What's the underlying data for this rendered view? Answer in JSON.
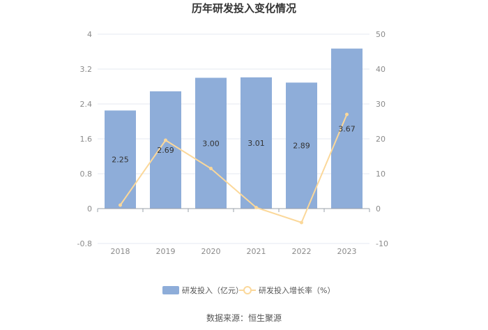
{
  "chart_data": {
    "type": "bar",
    "title": "历年研发投入变化情况",
    "categories": [
      "2018",
      "2019",
      "2020",
      "2021",
      "2022",
      "2023"
    ],
    "series": [
      {
        "name": "研发投入（亿元）",
        "type": "bar",
        "axis": "left",
        "color": "#8eadd9",
        "values": [
          2.25,
          2.69,
          3.0,
          3.01,
          2.89,
          3.67
        ],
        "labels": [
          "2.25",
          "2.69",
          "3.00",
          "3.01",
          "2.89",
          "3.67"
        ]
      },
      {
        "name": "研发投入增长率（%）",
        "type": "line",
        "axis": "right",
        "color": "#fbd89a",
        "values": [
          1.0,
          19.6,
          11.5,
          0.3,
          -4.0,
          27.0
        ]
      }
    ],
    "y_left": {
      "min": -0.8,
      "max": 4,
      "ticks": [
        "-0.8",
        "0",
        "0.8",
        "1.6",
        "2.4",
        "3.2",
        "4"
      ],
      "tick_values": [
        -0.8,
        0,
        0.8,
        1.6,
        2.4,
        3.2,
        4
      ]
    },
    "y_right": {
      "min": -10,
      "max": 50,
      "ticks": [
        "-10",
        "0",
        "10",
        "20",
        "30",
        "40",
        "50"
      ],
      "tick_values": [
        -10,
        0,
        10,
        20,
        30,
        40,
        50
      ]
    },
    "grid": true,
    "legend_position": "bottom"
  },
  "source": "数据来源：恒生聚源"
}
